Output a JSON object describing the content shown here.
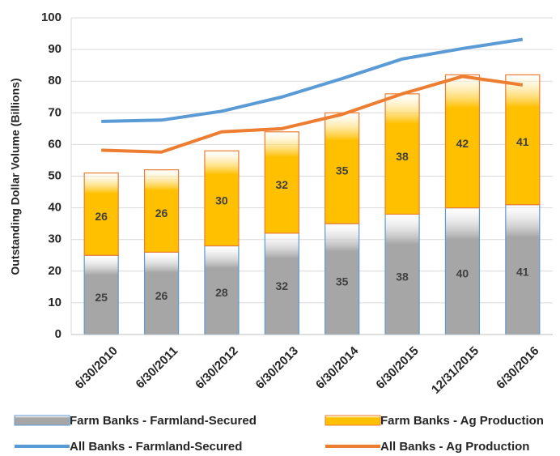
{
  "chart_data": {
    "type": "bar",
    "stacked": true,
    "y_label": "Outstanding Dollar Volume (Billions)",
    "categories": [
      "6/30/2010",
      "6/30/2011",
      "6/30/2012",
      "6/30/2013",
      "6/30/2014",
      "6/30/2015",
      "12/31/2015",
      "6/30/2016"
    ],
    "series": [
      {
        "name": "Farm Banks - Farmland-Secured",
        "type": "bar",
        "color": "#a6a6a6",
        "edge": "#5b9bd5",
        "values": [
          25,
          26,
          28,
          32,
          35,
          38,
          40,
          41
        ]
      },
      {
        "name": "Farm Banks - Ag Production",
        "type": "bar",
        "color": "#ffc000",
        "edge": "#ed7d31",
        "values": [
          26,
          26,
          30,
          32,
          35,
          38,
          42,
          41
        ]
      },
      {
        "name": "All Banks - Farmland-Secured",
        "type": "line",
        "color": "#5b9bd5",
        "values": [
          67.3,
          67.7,
          70.5,
          75,
          80.8,
          87,
          90.3,
          93.2
        ]
      },
      {
        "name": "All Banks - Ag Production",
        "type": "line",
        "color": "#ed7d31",
        "values": [
          58.2,
          57.6,
          64,
          65,
          69.5,
          76,
          81.5,
          78.8
        ]
      }
    ],
    "ylim": [
      0,
      100
    ],
    "yticks": [
      0,
      10,
      20,
      30,
      40,
      50,
      60,
      70,
      80,
      90,
      100
    ],
    "grid": true
  }
}
